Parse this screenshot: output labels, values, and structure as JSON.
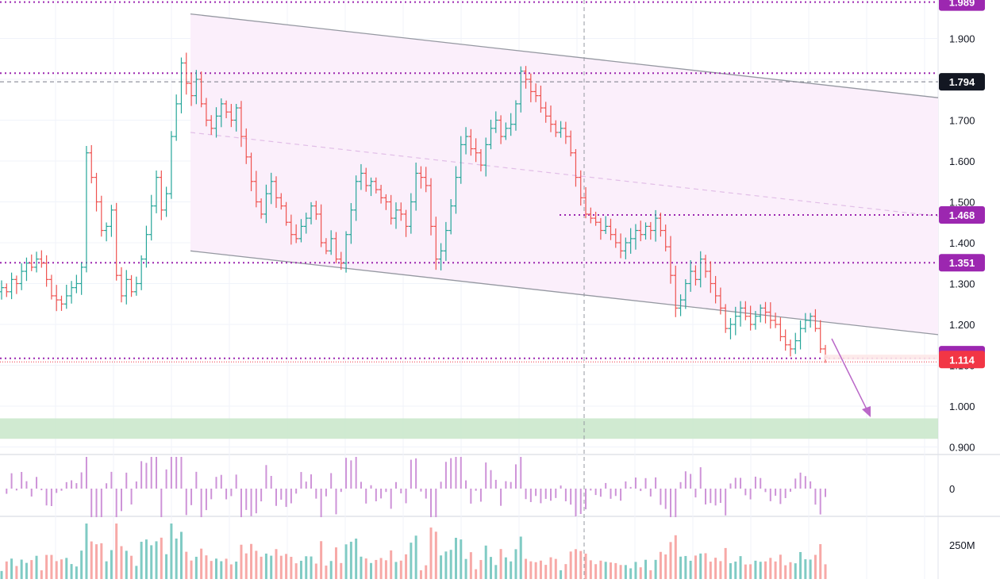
{
  "chart_data": [
    {
      "type": "ohlc",
      "pane": "price",
      "y_axis": {
        "scale": "linear",
        "ylim": [
          0.86,
          2.0
        ],
        "tick_labels": [
          "0.900",
          "1.000",
          "1.100",
          "1.200",
          "1.300",
          "1.400",
          "1.500",
          "1.600",
          "1.700",
          "1.800",
          "1.900"
        ],
        "tick_values": [
          0.9,
          1.0,
          1.1,
          1.2,
          1.3,
          1.4,
          1.5,
          1.6,
          1.7,
          1.8,
          1.9
        ]
      },
      "grid": true,
      "colors": {
        "up": "#26a69a",
        "down": "#ef5350"
      },
      "closes": [
        1.29,
        1.28,
        1.31,
        1.3,
        1.33,
        1.35,
        1.34,
        1.36,
        1.35,
        1.31,
        1.27,
        1.26,
        1.25,
        1.27,
        1.29,
        1.3,
        1.34,
        1.62,
        1.56,
        1.5,
        1.43,
        1.44,
        1.48,
        1.32,
        1.27,
        1.31,
        1.28,
        1.3,
        1.36,
        1.42,
        1.49,
        1.56,
        1.48,
        1.52,
        1.66,
        1.74,
        1.84,
        1.79,
        1.76,
        1.8,
        1.74,
        1.7,
        1.68,
        1.71,
        1.74,
        1.72,
        1.7,
        1.73,
        1.66,
        1.61,
        1.55,
        1.5,
        1.47,
        1.52,
        1.55,
        1.51,
        1.49,
        1.45,
        1.42,
        1.41,
        1.44,
        1.46,
        1.49,
        1.47,
        1.4,
        1.38,
        1.41,
        1.36,
        1.35,
        1.42,
        1.48,
        1.55,
        1.57,
        1.54,
        1.55,
        1.53,
        1.51,
        1.5,
        1.46,
        1.48,
        1.47,
        1.44,
        1.5,
        1.57,
        1.56,
        1.54,
        1.44,
        1.36,
        1.38,
        1.43,
        1.49,
        1.56,
        1.64,
        1.66,
        1.63,
        1.62,
        1.59,
        1.64,
        1.68,
        1.7,
        1.66,
        1.68,
        1.69,
        1.74,
        1.82,
        1.8,
        1.77,
        1.76,
        1.73,
        1.71,
        1.69,
        1.67,
        1.68,
        1.66,
        1.62,
        1.56,
        1.51,
        1.47,
        1.46,
        1.45,
        1.43,
        1.44,
        1.42,
        1.4,
        1.38,
        1.4,
        1.41,
        1.43,
        1.42,
        1.44,
        1.43,
        1.46,
        1.43,
        1.39,
        1.32,
        1.24,
        1.26,
        1.3,
        1.33,
        1.31,
        1.36,
        1.33,
        1.3,
        1.27,
        1.24,
        1.19,
        1.2,
        1.22,
        1.24,
        1.22,
        1.2,
        1.22,
        1.24,
        1.23,
        1.21,
        1.2,
        1.17,
        1.15,
        1.14,
        1.16,
        1.19,
        1.21,
        1.22,
        1.19,
        1.14,
        1.12
      ],
      "horizontal_levels": [
        1.989,
        1.815,
        1.351,
        1.468,
        1.117
      ],
      "price_labels": [
        {
          "text": "1.989",
          "value": 1.989,
          "color": "#9c27b0"
        },
        {
          "text": "1.794",
          "value": 1.794,
          "color": "#131722"
        },
        {
          "text": "1.468",
          "value": 1.468,
          "color": "#9c27b0"
        },
        {
          "text": "1.351",
          "value": 1.351,
          "color": "#9c27b0"
        },
        {
          "text": "1.126",
          "value": 1.126,
          "color": "#9c27b0"
        },
        {
          "text": "1.117",
          "value": 1.117,
          "color": "#9c27b0"
        },
        {
          "text": "1.114",
          "value": 1.114,
          "color": "#f23645"
        }
      ],
      "descending_channel": {
        "upper_start": 1.96,
        "upper_end": 1.755,
        "lower_start": 1.38,
        "lower_end": 1.175
      },
      "support_zone": {
        "from": 0.92,
        "to": 0.97,
        "color": "#c8e6c9"
      }
    },
    {
      "type": "bar",
      "pane": "oscillator",
      "tick_labels": [
        "0"
      ],
      "color": "#ce93d8"
    },
    {
      "type": "bar",
      "pane": "volume",
      "tick_labels": [
        "250M"
      ]
    }
  ],
  "colors": {
    "level": "#9c27b0",
    "channel_fill": "#fbeffb",
    "channel_line": "#9598a1",
    "dashed_mid": "#e1bee7",
    "arrow": "#ba68c8"
  }
}
